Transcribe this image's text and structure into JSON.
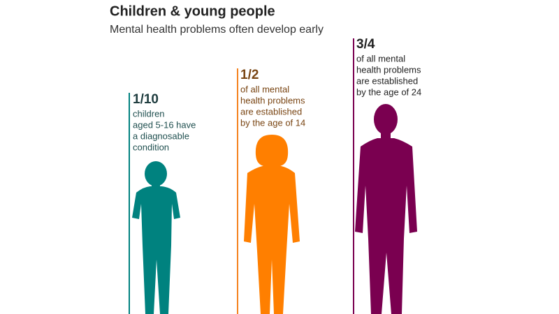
{
  "header": {
    "title": "Children & young people",
    "subtitle": "Mental health problems often develop early"
  },
  "figures": [
    {
      "fraction": "1/10",
      "lines": [
        "children",
        "aged 5-16 have",
        "a diagnosable",
        "condition"
      ]
    },
    {
      "fraction": "1/2",
      "lines": [
        "of all mental",
        "health problems",
        "are established",
        "by the age of 14"
      ]
    },
    {
      "fraction": "3/4",
      "lines": [
        "of all mental",
        "health problems",
        "are established",
        "by the age of 24"
      ]
    }
  ]
}
